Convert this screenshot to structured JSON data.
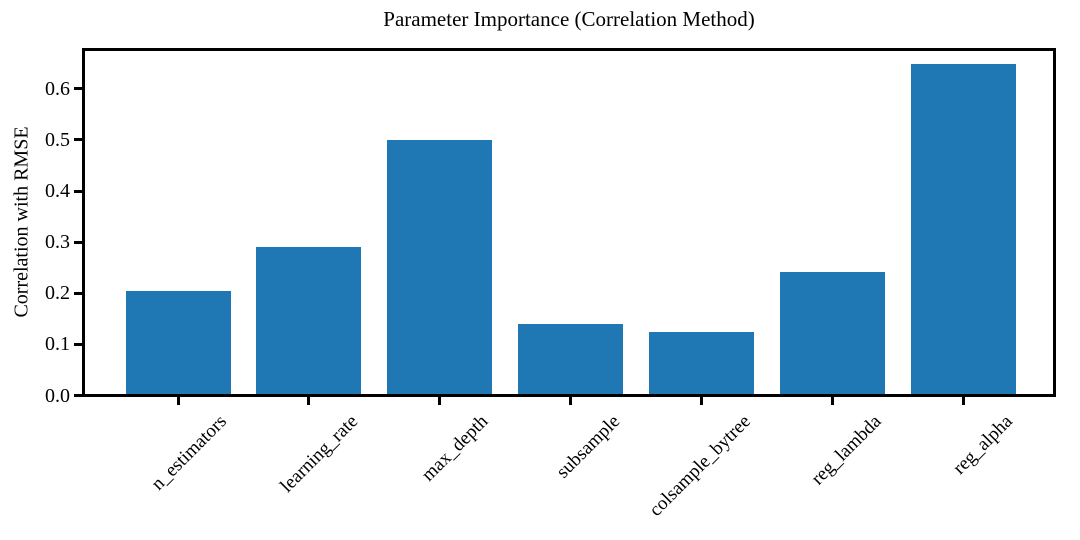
{
  "chart_data": {
    "type": "bar",
    "title": "Parameter Importance (Correlation Method)",
    "xlabel": "",
    "ylabel": "Correlation with RMSE",
    "categories": [
      "n_estimators",
      "learning_rate",
      "max_depth",
      "subsample",
      "colsample_bytree",
      "reg_lambda",
      "reg_alpha"
    ],
    "values": [
      0.205,
      0.29,
      0.5,
      0.14,
      0.125,
      0.242,
      0.648
    ],
    "yticks": [
      0.0,
      0.1,
      0.2,
      0.3,
      0.4,
      0.5,
      0.6
    ],
    "ylim": [
      0,
      0.68
    ],
    "x_tick_rotation_deg": 45,
    "grid": false,
    "legend": "none",
    "bar_color": "#1f77b4",
    "axis_color": "#000000",
    "background_color": "#ffffff",
    "text_color": "#000000"
  }
}
